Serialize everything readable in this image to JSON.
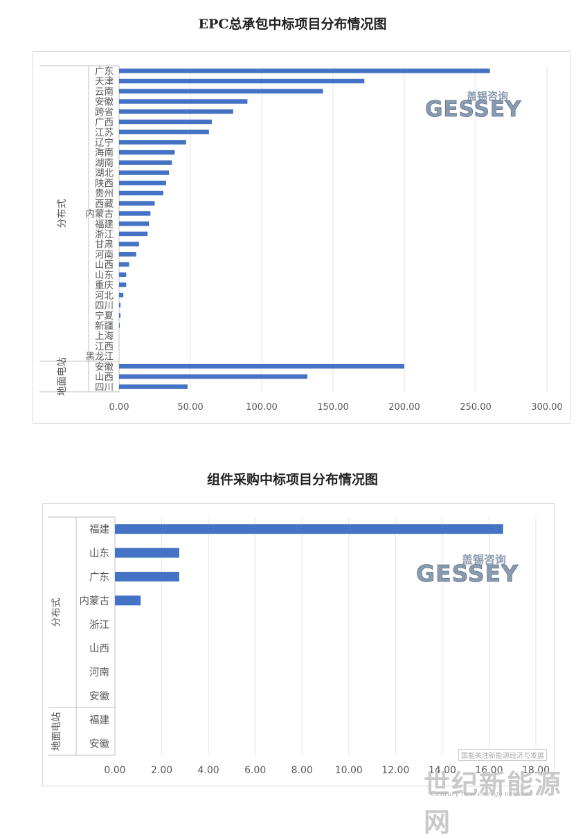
{
  "chart_data": [
    {
      "type": "bar",
      "orientation": "horizontal",
      "title": "EPC总承包中标项目分布情况图",
      "xlim": [
        0,
        300
      ],
      "ticks": [
        0,
        50,
        100,
        150,
        200,
        250,
        300
      ],
      "tick_labels": [
        "0.00",
        "50.00",
        "100.00",
        "150.00",
        "200.00",
        "250.00",
        "300.00"
      ],
      "grid": true,
      "groups": [
        {
          "label": "分布式",
          "categories": [
            "广东",
            "天津",
            "云南",
            "安徽",
            "跨省",
            "广西",
            "江苏",
            "辽宁",
            "海南",
            "湖南",
            "湖北",
            "陕西",
            "贵州",
            "西藏",
            "内蒙古",
            "福建",
            "浙江",
            "甘肃",
            "河南",
            "山西",
            "山东",
            "重庆",
            "河北",
            "四川",
            "宁夏",
            "新疆",
            "上海",
            "江西",
            "黑龙江"
          ],
          "values": [
            260,
            172,
            143,
            90,
            80,
            65,
            63,
            47,
            39,
            37,
            35,
            33,
            31,
            25,
            22,
            21,
            20,
            14,
            12,
            7,
            5,
            5,
            3,
            1,
            1,
            0.5,
            0,
            0,
            0
          ]
        },
        {
          "label": "地面电站",
          "categories": [
            "安徽",
            "山西",
            "四川"
          ],
          "values": [
            200,
            132,
            48
          ]
        }
      ],
      "color": "#4472c4"
    },
    {
      "type": "bar",
      "orientation": "horizontal",
      "title": "组件采购中标项目分布情况图",
      "xlim": [
        0,
        18
      ],
      "ticks": [
        0,
        2,
        4,
        6,
        8,
        10,
        12,
        14,
        16,
        18
      ],
      "tick_labels": [
        "0.00",
        "2.00",
        "4.00",
        "6.00",
        "8.00",
        "10.00",
        "12.00",
        "14.00",
        "16.00",
        "18.00"
      ],
      "grid": true,
      "groups": [
        {
          "label": "分布式",
          "categories": [
            "福建",
            "山东",
            "广东",
            "内蒙古",
            "浙江",
            "山西",
            "河南",
            "安徽"
          ],
          "values": [
            16.6,
            2.75,
            2.75,
            1.1,
            0,
            0,
            0,
            0
          ]
        },
        {
          "label": "地面电站",
          "categories": [
            "福建",
            "安徽"
          ],
          "values": [
            0,
            0
          ]
        }
      ],
      "color": "#4472c4"
    }
  ],
  "watermark": {
    "brand_cn": "盖锡咨询",
    "brand_en": "GESSEY",
    "site_cn": "世纪新能源网",
    "site_en": "Century new energy network",
    "site_note": "国能关注新能源经济与发展"
  },
  "colors": {
    "bar": "#4472c4",
    "grid": "#e3e3e3",
    "axis": "#bfbfbf",
    "text": "#595959",
    "logo": "#8a9bb0"
  }
}
